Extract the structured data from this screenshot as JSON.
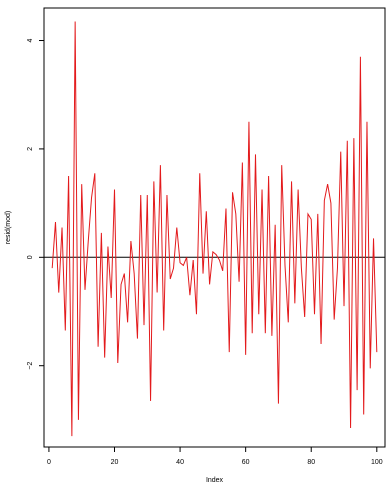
{
  "chart_data": {
    "type": "line",
    "xlabel": "Index",
    "ylabel": "resid(mod)",
    "xlim": [
      -1.5,
      102.5
    ],
    "ylim": [
      -3.5,
      4.6
    ],
    "x_ticks": [
      0,
      20,
      40,
      60,
      80,
      100
    ],
    "y_ticks": [
      -2,
      0,
      2,
      4
    ],
    "grid": false,
    "series": [
      {
        "color": "#e31a1c",
        "x": [
          1,
          2,
          3,
          4,
          5,
          6,
          7,
          8,
          9,
          10,
          11,
          12,
          13,
          14,
          15,
          16,
          17,
          18,
          19,
          20,
          21,
          22,
          23,
          24,
          25,
          26,
          27,
          28,
          29,
          30,
          31,
          32,
          33,
          34,
          35,
          36,
          37,
          38,
          39,
          40,
          41,
          42,
          43,
          44,
          45,
          46,
          47,
          48,
          49,
          50,
          51,
          52,
          53,
          54,
          55,
          56,
          57,
          58,
          59,
          60,
          61,
          62,
          63,
          64,
          65,
          66,
          67,
          68,
          69,
          70,
          71,
          72,
          73,
          74,
          75,
          76,
          77,
          78,
          79,
          80,
          81,
          82,
          83,
          84,
          85,
          86,
          87,
          88,
          89,
          90,
          91,
          92,
          93,
          94,
          95,
          96,
          97,
          98,
          99,
          100
        ],
        "values": [
          -0.2,
          0.65,
          -0.65,
          0.55,
          -1.35,
          1.5,
          -3.3,
          4.35,
          -3.0,
          1.35,
          -0.6,
          0.3,
          1.1,
          1.55,
          -1.65,
          0.45,
          -1.85,
          0.2,
          -0.75,
          1.25,
          -1.95,
          -0.5,
          -0.3,
          -1.2,
          0.3,
          -0.3,
          -1.5,
          1.15,
          -1.25,
          1.15,
          -2.65,
          1.4,
          -0.65,
          1.7,
          -1.35,
          1.15,
          -0.4,
          -0.2,
          0.55,
          -0.1,
          -0.15,
          0.0,
          -0.7,
          -0.05,
          -1.05,
          1.55,
          -0.3,
          0.85,
          -0.5,
          0.1,
          0.05,
          -0.05,
          -0.25,
          0.9,
          -1.75,
          1.2,
          0.8,
          -0.45,
          1.75,
          -1.8,
          2.5,
          -1.4,
          1.9,
          -1.05,
          1.25,
          -1.4,
          1.5,
          -1.45,
          0.6,
          -2.7,
          1.7,
          -0.15,
          -1.2,
          1.4,
          -0.85,
          1.25,
          -0.2,
          -1.1,
          0.8,
          0.7,
          -1.05,
          0.8,
          -1.6,
          1.05,
          1.35,
          1.0,
          -1.15,
          -0.2,
          1.95,
          -0.9,
          2.15,
          -3.15,
          2.2,
          -2.45,
          3.7,
          -2.9,
          2.5,
          -2.05,
          0.35,
          -1.75
        ]
      }
    ],
    "hlines": [
      0
    ]
  }
}
